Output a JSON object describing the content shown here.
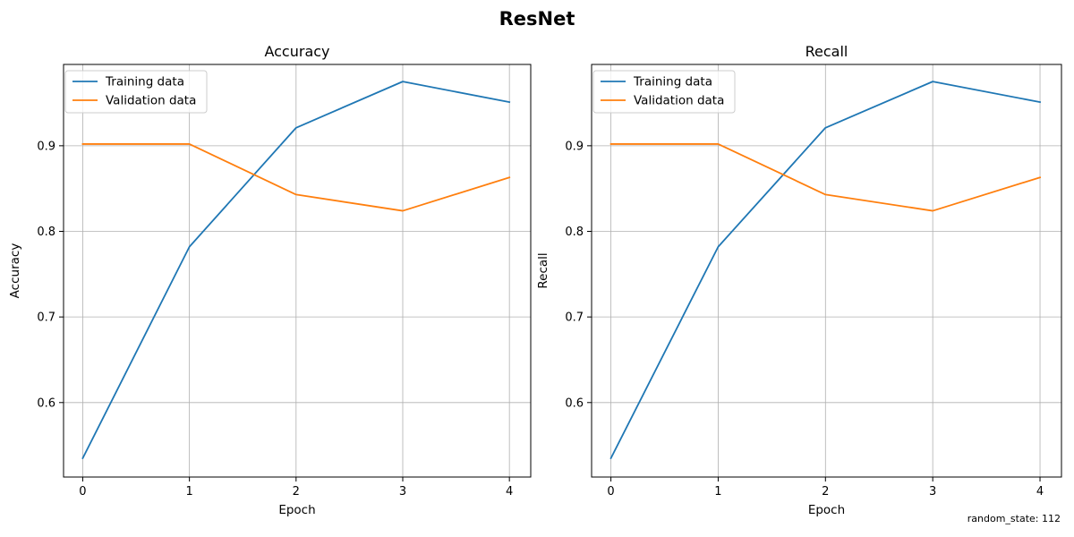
{
  "figure": {
    "title": "ResNet",
    "footnote": "random_state: 112"
  },
  "chart_data": [
    {
      "type": "line",
      "title": "Accuracy",
      "xlabel": "Epoch",
      "ylabel": "Accuracy",
      "x": [
        0,
        1,
        2,
        3,
        4
      ],
      "xticks": [
        0,
        1,
        2,
        3,
        4
      ],
      "yticks": [
        0.6,
        0.7,
        0.8,
        0.9
      ],
      "xlim": [
        -0.18,
        4.2
      ],
      "ylim": [
        0.513,
        0.995
      ],
      "grid": true,
      "legend_position": "upper-left",
      "series": [
        {
          "name": "Training data",
          "color": "#1f77b4",
          "values": [
            0.535,
            0.782,
            0.921,
            0.975,
            0.951
          ]
        },
        {
          "name": "Validation data",
          "color": "#ff7f0e",
          "values": [
            0.902,
            0.902,
            0.843,
            0.824,
            0.863
          ]
        }
      ]
    },
    {
      "type": "line",
      "title": "Recall",
      "xlabel": "Epoch",
      "ylabel": "Recall",
      "x": [
        0,
        1,
        2,
        3,
        4
      ],
      "xticks": [
        0,
        1,
        2,
        3,
        4
      ],
      "yticks": [
        0.6,
        0.7,
        0.8,
        0.9
      ],
      "xlim": [
        -0.18,
        4.2
      ],
      "ylim": [
        0.513,
        0.995
      ],
      "grid": true,
      "legend_position": "upper-left",
      "series": [
        {
          "name": "Training data",
          "color": "#1f77b4",
          "values": [
            0.535,
            0.782,
            0.921,
            0.975,
            0.951
          ]
        },
        {
          "name": "Validation data",
          "color": "#ff7f0e",
          "values": [
            0.902,
            0.902,
            0.843,
            0.824,
            0.863
          ]
        }
      ]
    }
  ]
}
